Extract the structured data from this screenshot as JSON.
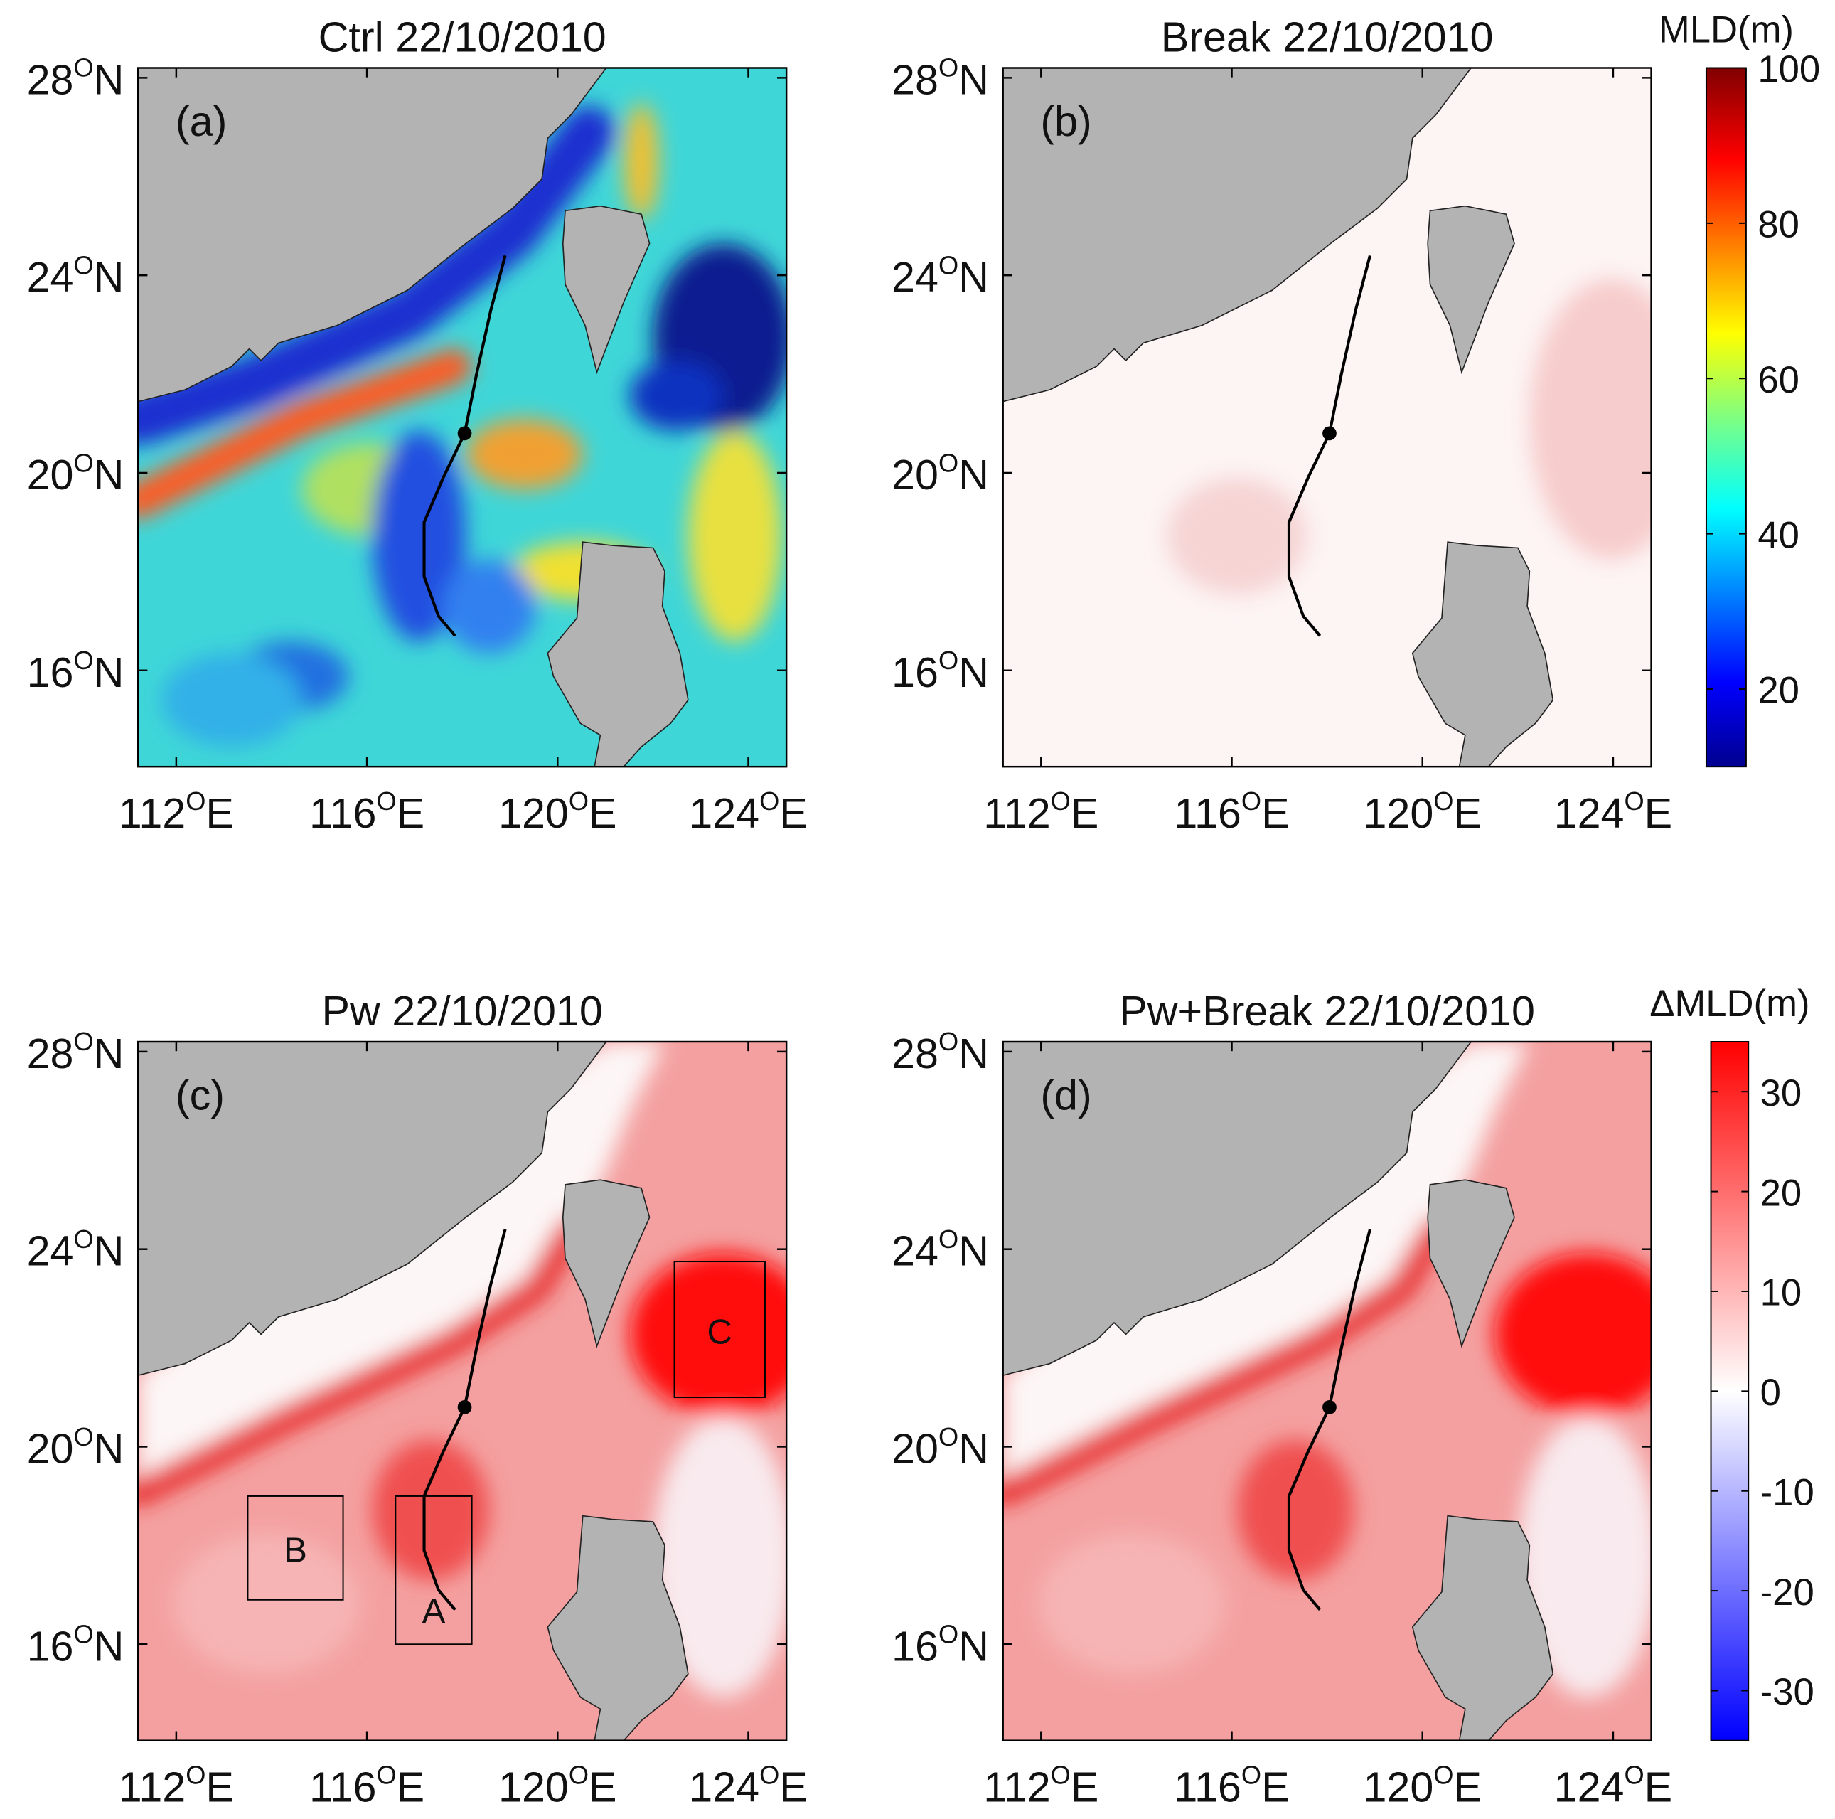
{
  "degree": "O",
  "north": "N",
  "east": "E",
  "lon_ticks": [
    112,
    116,
    120,
    124
  ],
  "lat_ticks": [
    16,
    20,
    24,
    28
  ],
  "xlim": [
    111.2,
    124.8
  ],
  "ylim": [
    14.05,
    28.2
  ],
  "track": {
    "lon": [
      118.9,
      118.6,
      118.3,
      118.05,
      117.6,
      117.2,
      117.2,
      117.5,
      117.85
    ],
    "lat": [
      24.4,
      23.3,
      22.0,
      20.8,
      19.9,
      19.0,
      17.9,
      17.1,
      16.7
    ]
  },
  "typhoon_position": {
    "lon": 118.05,
    "lat": 20.8
  },
  "panels": [
    {
      "title": "Ctrl 22/10/2010",
      "label": "(a)"
    },
    {
      "title": "Break 22/10/2010",
      "label": "(b)"
    },
    {
      "title": "Pw 22/10/2010",
      "label": "(c)",
      "boxes": [
        {
          "name": "A",
          "lon": [
            116.6,
            118.2
          ],
          "lat": [
            16.0,
            19.0
          ]
        },
        {
          "name": "B",
          "lon": [
            113.5,
            115.5
          ],
          "lat": [
            16.9,
            19.0
          ]
        },
        {
          "name": "C",
          "lon": [
            122.45,
            124.35
          ],
          "lat": [
            21.0,
            23.75
          ]
        }
      ]
    },
    {
      "title": "Pw+Break 22/10/2010",
      "label": "(d)"
    }
  ],
  "colorbars": [
    {
      "label": "MLD(m)",
      "lim": [
        10,
        100
      ],
      "ticks": [
        20,
        40,
        60,
        80,
        100
      ]
    },
    {
      "label": "ΔMLD(m)",
      "lim": [
        -35,
        35
      ],
      "ticks": [
        -30,
        -20,
        -10,
        0,
        10,
        20,
        30
      ]
    }
  ]
}
